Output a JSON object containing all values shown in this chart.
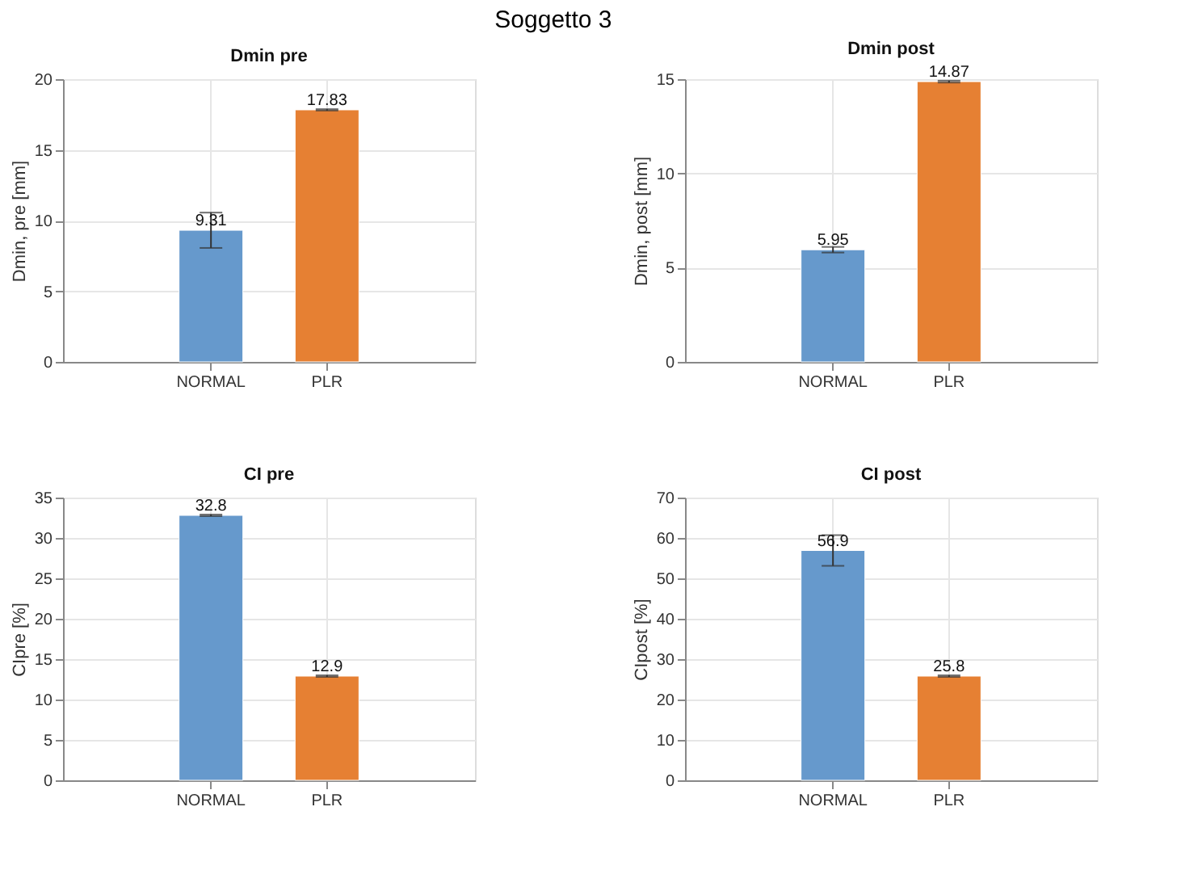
{
  "chart_data": [
    {
      "type": "bar",
      "title": "Dmin pre",
      "ylabel": "Dmin, pre [mm]",
      "categories": [
        "NORMAL",
        "PLR"
      ],
      "values": [
        9.31,
        17.83
      ],
      "colors": [
        "#6699cc",
        "#e68033"
      ],
      "errors": [
        1.25,
        0.05
      ],
      "ylim": [
        0,
        20
      ],
      "yticks": [
        0,
        5,
        10,
        15,
        20
      ],
      "grid": true,
      "data_labels": true,
      "annotations": [
        "Soggetto 3"
      ]
    },
    {
      "type": "bar",
      "title": "Dmin post",
      "ylabel": "Dmin, post [mm]",
      "categories": [
        "NORMAL",
        "PLR"
      ],
      "values": [
        5.95,
        14.87
      ],
      "colors": [
        "#6699cc",
        "#e68033"
      ],
      "errors": [
        0.15,
        0.05
      ],
      "ylim": [
        0,
        15
      ],
      "yticks": [
        0,
        5,
        10,
        15
      ],
      "grid": true,
      "data_labels": true
    },
    {
      "type": "bar",
      "title": "CI pre",
      "ylabel": "CIpre [%]",
      "categories": [
        "NORMAL",
        "PLR"
      ],
      "values": [
        32.8,
        12.9
      ],
      "colors": [
        "#6699cc",
        "#e68033"
      ],
      "errors": [
        0.1,
        0.1
      ],
      "ylim": [
        0,
        35
      ],
      "yticks": [
        0,
        5,
        10,
        15,
        20,
        25,
        30,
        35
      ],
      "grid": true,
      "data_labels": true
    },
    {
      "type": "bar",
      "title": "CI post",
      "ylabel": "CIpost [%]",
      "categories": [
        "NORMAL",
        "PLR"
      ],
      "values": [
        56.9,
        25.8
      ],
      "colors": [
        "#6699cc",
        "#e68033"
      ],
      "errors": [
        3.8,
        0.2
      ],
      "ylim": [
        0,
        70
      ],
      "yticks": [
        0,
        10,
        20,
        30,
        40,
        50,
        60,
        70
      ],
      "grid": true,
      "data_labels": true
    }
  ]
}
